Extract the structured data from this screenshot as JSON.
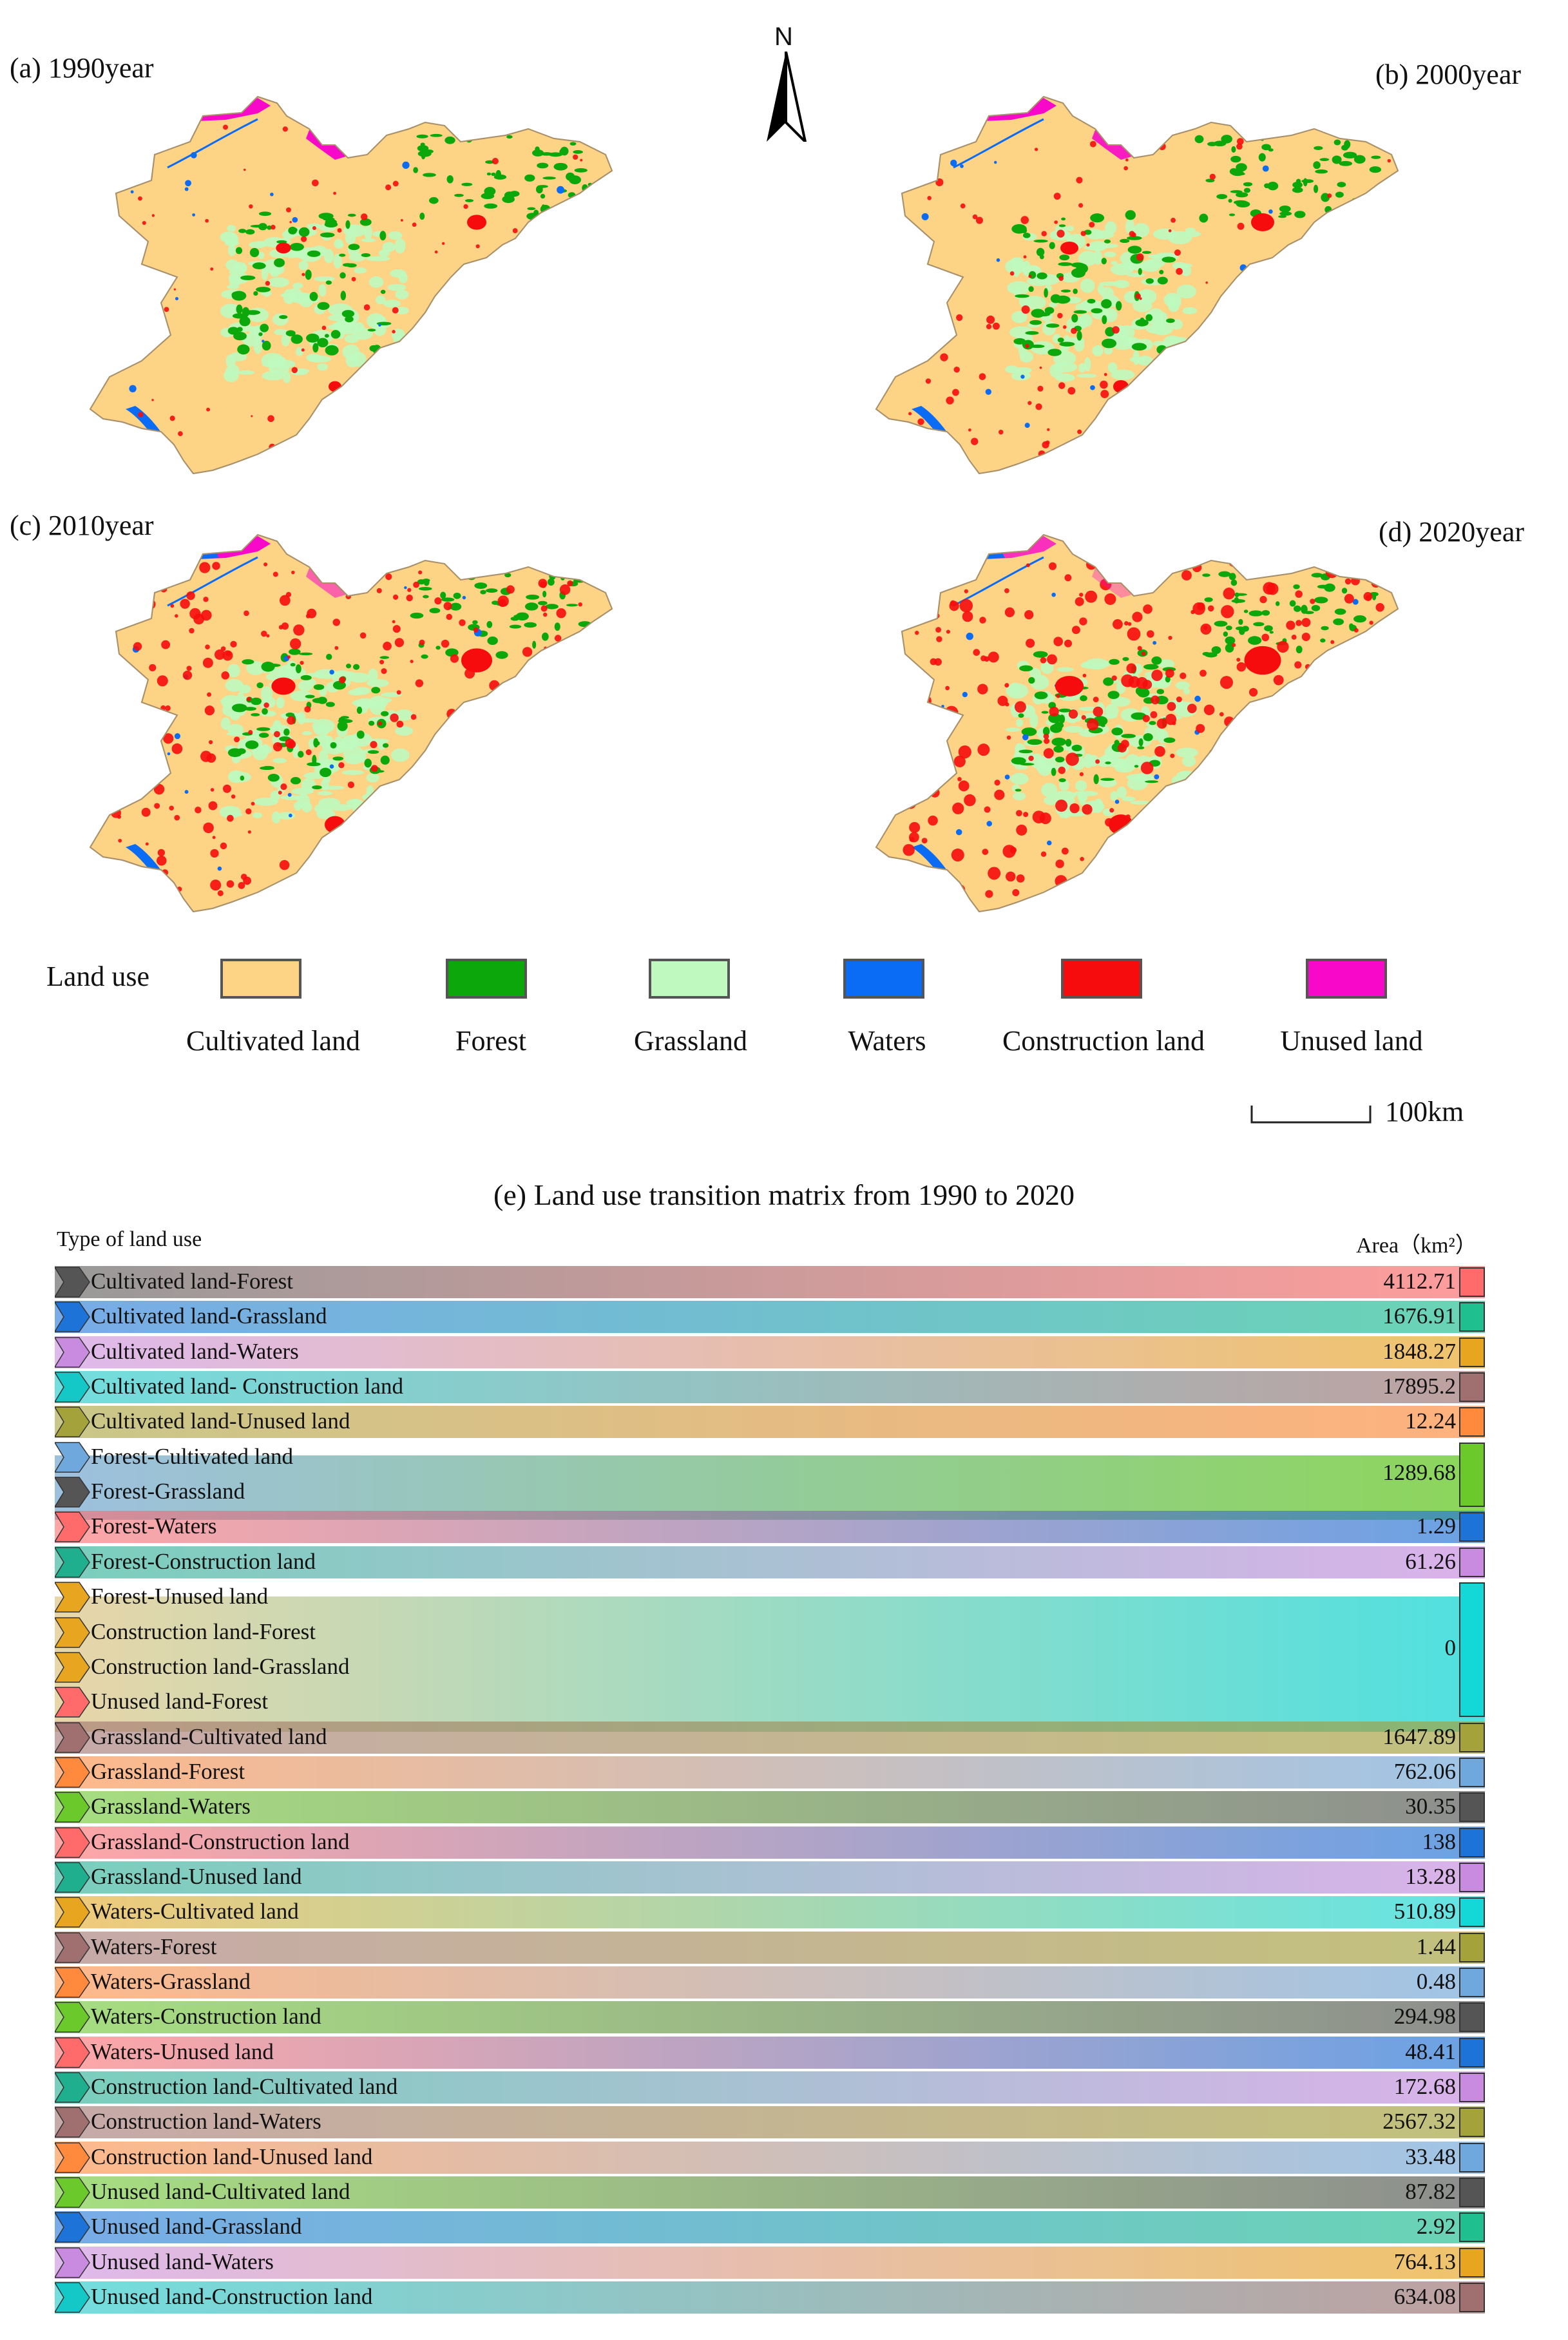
{
  "maps": {
    "panels": [
      {
        "label": "(a) 1990year"
      },
      {
        "label": "(b) 2000year"
      },
      {
        "label": "(c) 2010year"
      },
      {
        "label": "(d) 2020year"
      }
    ],
    "north_label": "N",
    "legend_title": "Land use",
    "legend": [
      {
        "label": "Cultivated land",
        "color": "#FDD386"
      },
      {
        "label": "Forest",
        "color": "#0BA70B"
      },
      {
        "label": "Grassland",
        "color": "#BFF9BF"
      },
      {
        "label": "Waters",
        "color": "#0A6BF5"
      },
      {
        "label": "Construction land",
        "color": "#F60C0C"
      },
      {
        "label": "Unused land",
        "color": "#F808C8"
      }
    ],
    "scale_label": "100km"
  },
  "chart_data": {
    "type": "table",
    "title": "(e) Land use transition matrix from 1990 to 2020",
    "col_left": "Type of land use",
    "col_right": "Area（km²）",
    "rows": [
      {
        "label": "Cultivated land-Forest",
        "value": "4112.71",
        "color": "#FF6B6B",
        "arrow": "#555555"
      },
      {
        "label": "Cultivated land-Grassland",
        "value": "1676.91",
        "color": "#1FBF8F",
        "arrow": "#1E73D8"
      },
      {
        "label": "Cultivated land-Waters",
        "value": "1848.27",
        "color": "#E8A620",
        "arrow": "#C98BE0"
      },
      {
        "label": "Cultivated land- Construction land",
        "value": "17895.2",
        "color": "#A07070",
        "arrow": "#14C8C8"
      },
      {
        "label": "Cultivated land-Unused land",
        "value": "12.24",
        "color": "#FF8A3D",
        "arrow": "#A4A23A"
      },
      {
        "label": "Forest-Cultivated land",
        "value": "1289.68",
        "color": "#6CC92C",
        "arrow": "#6FA8DC"
      },
      {
        "label": "Forest-Grassland",
        "value": "1289.68",
        "color": "#6CC92C",
        "arrow": "#555555"
      },
      {
        "label": "Forest-Waters",
        "value": "1.29",
        "color": "#1E73D8",
        "arrow": "#FF6B6B"
      },
      {
        "label": "Forest-Construction land",
        "value": "61.26",
        "color": "#C98BE0",
        "arrow": "#1FAF8F"
      },
      {
        "label": "Forest-Unused land",
        "value": "0",
        "color": "#14D8D8",
        "arrow": "#E8A620"
      },
      {
        "label": "Construction land-Forest",
        "value": "0",
        "color": "#14D8D8",
        "arrow": "#E8A620"
      },
      {
        "label": "Construction land-Grassland",
        "value": "0",
        "color": "#14D8D8",
        "arrow": "#E8A620"
      },
      {
        "label": "Unused land-Forest",
        "value": "0",
        "color": "#14D8D8",
        "arrow": "#FF6B6B"
      },
      {
        "label": "Grassland-Cultivated land",
        "value": "1647.89",
        "color": "#A4A23A",
        "arrow": "#A07070"
      },
      {
        "label": "Grassland-Forest",
        "value": "762.06",
        "color": "#6FA8DC",
        "arrow": "#FF8A3D"
      },
      {
        "label": "Grassland-Waters",
        "value": "30.35",
        "color": "#555555",
        "arrow": "#6CC92C"
      },
      {
        "label": "Grassland-Construction land",
        "value": "138",
        "color": "#1E73D8",
        "arrow": "#FF6B6B"
      },
      {
        "label": "Grassland-Unused land",
        "value": "13.28",
        "color": "#C98BE0",
        "arrow": "#1FAF8F"
      },
      {
        "label": "Waters-Cultivated land",
        "value": "510.89",
        "color": "#14D8D8",
        "arrow": "#E8A620"
      },
      {
        "label": "Waters-Forest",
        "value": "1.44",
        "color": "#A4A23A",
        "arrow": "#A07070"
      },
      {
        "label": "Waters-Grassland",
        "value": "0.48",
        "color": "#6FA8DC",
        "arrow": "#FF8A3D"
      },
      {
        "label": "Waters-Construction land",
        "value": "294.98",
        "color": "#555555",
        "arrow": "#6CC92C"
      },
      {
        "label": "Waters-Unused land",
        "value": "48.41",
        "color": "#1E73D8",
        "arrow": "#FF6B6B"
      },
      {
        "label": "Construction land-Cultivated land",
        "value": "172.68",
        "color": "#C98BE0",
        "arrow": "#1FAF8F"
      },
      {
        "label": "Construction land-Waters",
        "value": "2567.32",
        "color": "#A4A23A",
        "arrow": "#A07070"
      },
      {
        "label": "Construction land-Unused land",
        "value": "33.48",
        "color": "#6FA8DC",
        "arrow": "#FF8A3D"
      },
      {
        "label": "Unused land-Cultivated land",
        "value": "87.82",
        "color": "#555555",
        "arrow": "#6CC92C"
      },
      {
        "label": "Unused land-Grassland",
        "value": "2.92",
        "color": "#1FBF8F",
        "arrow": "#1E73D8"
      },
      {
        "label": "Unused land-Waters",
        "value": "764.13",
        "color": "#E8A620",
        "arrow": "#C98BE0"
      },
      {
        "label": "Unused land-Construction land",
        "value": "634.08",
        "color": "#A07070",
        "arrow": "#14C8C8"
      }
    ]
  }
}
